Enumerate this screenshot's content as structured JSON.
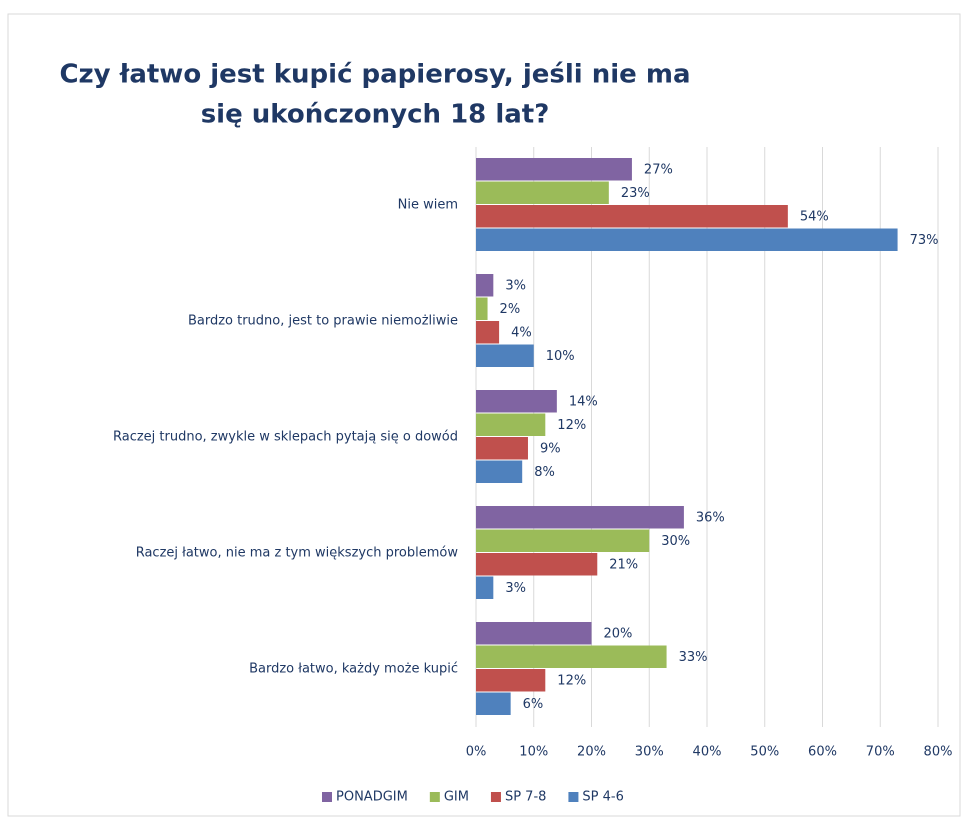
{
  "chart_data": {
    "type": "bar",
    "orientation": "horizontal",
    "title": [
      "Czy łatwo jest kupić papierosy, jeśli nie ma",
      "się ukończonych 18 lat?"
    ],
    "categories": [
      "Nie wiem",
      "Bardzo trudno, jest to prawie niemożliwie",
      "Raczej trudno, zwykle w sklepach pytają się o dowód",
      "Raczej łatwo, nie ma z tym większych problemów",
      "Bardzo łatwo, każdy może kupić"
    ],
    "series": [
      {
        "name": "PONADGIM",
        "color": "#8064a2",
        "values": [
          27,
          3,
          14,
          36,
          20
        ],
        "value_labels": [
          "27%",
          "3%",
          "14%",
          "36%",
          "20%"
        ]
      },
      {
        "name": "GIM",
        "color": "#9bbb59",
        "values": [
          23,
          2,
          12,
          30,
          33
        ],
        "value_labels": [
          "23%",
          "2%",
          "12%",
          "30%",
          "33%"
        ]
      },
      {
        "name": "SP 7-8",
        "color": "#c0504d",
        "values": [
          54,
          4,
          9,
          21,
          12
        ],
        "value_labels": [
          "54%",
          "4%",
          "9%",
          "21%",
          "12%"
        ]
      },
      {
        "name": "SP 4-6",
        "color": "#4f81bd",
        "values": [
          73,
          10,
          8,
          3,
          6
        ],
        "value_labels": [
          "73%",
          "10%",
          "8%",
          "3%",
          "6%"
        ]
      }
    ],
    "xlim": [
      0,
      80
    ],
    "xticks": [
      {
        "value": 0,
        "label": "0%"
      },
      {
        "value": 10,
        "label": "10%"
      },
      {
        "value": 20,
        "label": "20%"
      },
      {
        "value": 30,
        "label": "30%"
      },
      {
        "value": 40,
        "label": "40%"
      },
      {
        "value": 50,
        "label": "50%"
      },
      {
        "value": 60,
        "label": "60%"
      },
      {
        "value": 70,
        "label": "70%"
      },
      {
        "value": 80,
        "label": "80%"
      }
    ],
    "grid": true,
    "legend": "bottom"
  }
}
